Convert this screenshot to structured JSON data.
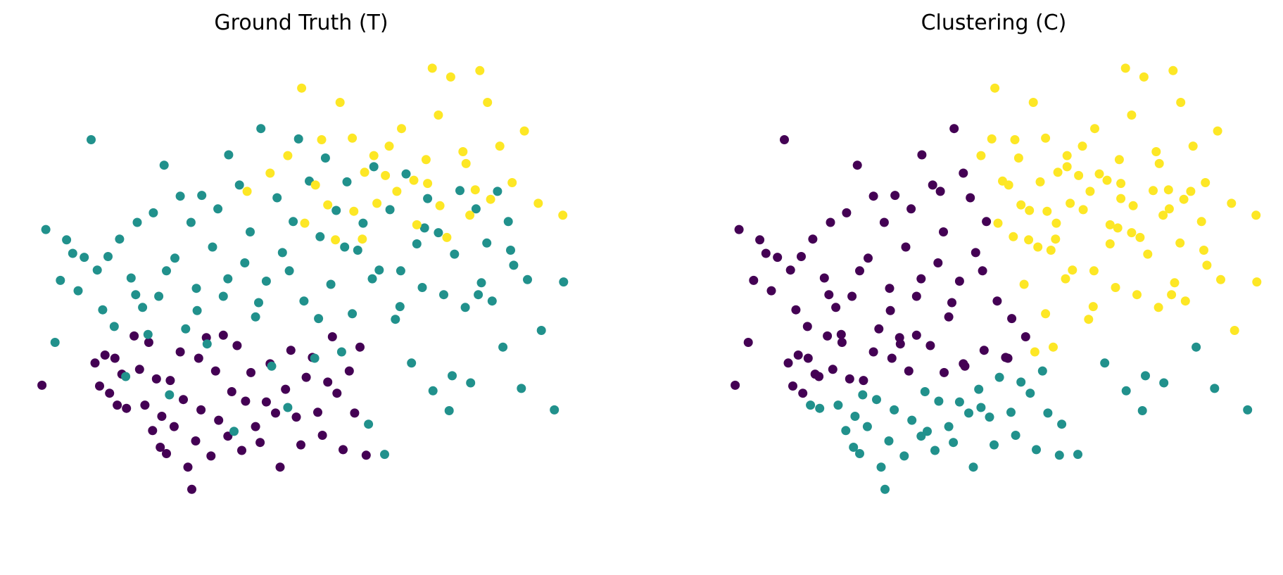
{
  "colors": {
    "purple": "#440154",
    "teal": "#21918c",
    "yellow": "#fde725"
  },
  "chart_data": [
    {
      "type": "scatter",
      "title": "Ground Truth (T)",
      "axes": "off",
      "grid": false,
      "xlim": [
        -3.4,
        3.7
      ],
      "ylim": [
        -2.8,
        3.4
      ],
      "color_by_label": {
        "0": "purple",
        "1": "teal",
        "2": "yellow"
      },
      "points": [
        [
          -3.22,
          -0.74,
          0
        ],
        [
          -2.53,
          -0.46,
          0
        ],
        [
          -2.47,
          -0.75,
          0
        ],
        [
          -2.4,
          -0.36,
          0
        ],
        [
          -2.34,
          -0.84,
          0
        ],
        [
          -2.27,
          -0.4,
          0
        ],
        [
          -2.24,
          -0.99,
          0
        ],
        [
          -2.18,
          -0.6,
          0
        ],
        [
          -2.12,
          -1.03,
          0
        ],
        [
          -2.02,
          -0.12,
          0
        ],
        [
          -1.95,
          -0.54,
          0
        ],
        [
          -1.88,
          -0.99,
          0
        ],
        [
          -1.83,
          -0.2,
          0
        ],
        [
          -1.78,
          -1.31,
          0
        ],
        [
          -1.73,
          -0.66,
          0
        ],
        [
          -1.68,
          -1.52,
          0
        ],
        [
          -1.66,
          -1.13,
          0
        ],
        [
          -1.6,
          -1.6,
          0
        ],
        [
          -1.55,
          -0.68,
          0
        ],
        [
          -1.5,
          -1.26,
          0
        ],
        [
          -1.42,
          -0.32,
          0
        ],
        [
          -1.38,
          -0.92,
          0
        ],
        [
          -1.32,
          -1.77,
          0
        ],
        [
          -1.27,
          -2.05,
          0
        ],
        [
          -1.22,
          -1.44,
          0
        ],
        [
          -1.18,
          -0.4,
          0
        ],
        [
          -1.15,
          -1.05,
          0
        ],
        [
          -1.08,
          -0.14,
          0
        ],
        [
          -1.02,
          -1.63,
          0
        ],
        [
          -0.96,
          -0.56,
          0
        ],
        [
          -0.92,
          -1.18,
          0
        ],
        [
          -0.86,
          -0.11,
          0
        ],
        [
          -0.8,
          -1.38,
          0
        ],
        [
          -0.75,
          -0.82,
          0
        ],
        [
          -0.68,
          -0.24,
          0
        ],
        [
          -0.62,
          -1.56,
          0
        ],
        [
          -0.57,
          -0.94,
          0
        ],
        [
          -0.5,
          -0.58,
          0
        ],
        [
          -0.44,
          -1.26,
          0
        ],
        [
          -0.38,
          -1.46,
          0
        ],
        [
          -0.3,
          -0.95,
          0
        ],
        [
          -0.25,
          -0.47,
          0
        ],
        [
          -0.18,
          -1.09,
          0
        ],
        [
          -0.12,
          -1.77,
          0
        ],
        [
          -0.05,
          -0.79,
          0
        ],
        [
          0.02,
          -0.3,
          0
        ],
        [
          0.09,
          -1.14,
          0
        ],
        [
          0.15,
          -1.49,
          0
        ],
        [
          0.22,
          -0.64,
          0
        ],
        [
          0.3,
          -0.39,
          0
        ],
        [
          0.37,
          -1.08,
          0
        ],
        [
          0.43,
          -1.37,
          0
        ],
        [
          0.5,
          -0.7,
          0
        ],
        [
          0.56,
          -0.13,
          0
        ],
        [
          0.62,
          -0.84,
          0
        ],
        [
          0.7,
          -1.55,
          0
        ],
        [
          0.78,
          -0.56,
          0
        ],
        [
          0.85,
          -1.09,
          0
        ],
        [
          0.92,
          -0.26,
          0
        ],
        [
          1.0,
          -1.62,
          0
        ],
        [
          -3.17,
          1.22,
          1
        ],
        [
          -3.05,
          -0.2,
          1
        ],
        [
          -2.98,
          0.58,
          1
        ],
        [
          -2.9,
          1.09,
          1
        ],
        [
          -2.82,
          0.92,
          1
        ],
        [
          -2.75,
          0.45,
          1
        ],
        [
          -2.67,
          0.87,
          1
        ],
        [
          -2.58,
          2.35,
          1
        ],
        [
          -2.5,
          0.71,
          1
        ],
        [
          -2.43,
          0.21,
          1
        ],
        [
          -2.36,
          0.88,
          1
        ],
        [
          -2.28,
          0.0,
          1
        ],
        [
          -2.21,
          1.1,
          1
        ],
        [
          -2.13,
          -0.63,
          1
        ],
        [
          -2.06,
          0.61,
          1
        ],
        [
          -1.98,
          1.31,
          1
        ],
        [
          -1.91,
          0.24,
          1
        ],
        [
          -1.84,
          -0.1,
          1
        ],
        [
          -1.77,
          1.43,
          1
        ],
        [
          -1.7,
          0.38,
          1
        ],
        [
          -1.63,
          2.03,
          1
        ],
        [
          -1.56,
          -0.86,
          1
        ],
        [
          -1.49,
          0.86,
          1
        ],
        [
          -1.42,
          1.64,
          1
        ],
        [
          -1.35,
          -0.03,
          1
        ],
        [
          -1.28,
          1.31,
          1
        ],
        [
          -1.21,
          0.48,
          1
        ],
        [
          -1.14,
          1.65,
          1
        ],
        [
          -1.07,
          -0.22,
          1
        ],
        [
          -1.0,
          1.0,
          1
        ],
        [
          -0.93,
          1.48,
          1
        ],
        [
          -0.86,
          0.38,
          1
        ],
        [
          -0.79,
          2.16,
          1
        ],
        [
          -0.72,
          -1.32,
          1
        ],
        [
          -0.65,
          1.78,
          1
        ],
        [
          -0.58,
          0.8,
          1
        ],
        [
          -0.51,
          1.19,
          1
        ],
        [
          -0.44,
          0.12,
          1
        ],
        [
          -0.37,
          2.49,
          1
        ],
        [
          -0.3,
          0.57,
          1
        ],
        [
          -0.23,
          -0.5,
          1
        ],
        [
          -0.16,
          1.62,
          1
        ],
        [
          -0.09,
          0.93,
          1
        ],
        [
          -0.02,
          -1.02,
          1
        ],
        [
          0.05,
          1.32,
          1
        ],
        [
          0.12,
          2.36,
          1
        ],
        [
          0.19,
          0.32,
          1
        ],
        [
          0.26,
          1.83,
          1
        ],
        [
          0.33,
          -0.4,
          1
        ],
        [
          0.4,
          1.13,
          1
        ],
        [
          0.47,
          2.12,
          1
        ],
        [
          0.54,
          0.53,
          1
        ],
        [
          0.61,
          1.46,
          1
        ],
        [
          0.68,
          -0.32,
          1
        ],
        [
          0.75,
          1.82,
          1
        ],
        [
          0.82,
          0.16,
          1
        ],
        [
          0.89,
          0.96,
          1
        ],
        [
          0.96,
          1.3,
          1
        ],
        [
          1.03,
          -1.23,
          1
        ],
        [
          1.1,
          2.01,
          1
        ],
        [
          1.17,
          0.71,
          1
        ],
        [
          1.24,
          -1.61,
          1
        ],
        [
          1.31,
          1.47,
          1
        ],
        [
          1.38,
          0.09,
          1
        ],
        [
          1.45,
          0.7,
          1
        ],
        [
          1.52,
          1.92,
          1
        ],
        [
          1.59,
          -0.46,
          1
        ],
        [
          1.66,
          1.04,
          1
        ],
        [
          1.73,
          0.49,
          1
        ],
        [
          1.8,
          1.61,
          1
        ],
        [
          1.87,
          -0.81,
          1
        ],
        [
          1.94,
          1.18,
          1
        ],
        [
          2.01,
          0.4,
          1
        ],
        [
          2.08,
          -1.06,
          1
        ],
        [
          2.15,
          0.91,
          1
        ],
        [
          2.22,
          1.71,
          1
        ],
        [
          2.29,
          0.24,
          1
        ],
        [
          2.36,
          -0.71,
          1
        ],
        [
          2.43,
          1.48,
          1
        ],
        [
          2.5,
          0.55,
          1
        ],
        [
          2.57,
          1.05,
          1
        ],
        [
          2.64,
          0.32,
          1
        ],
        [
          2.71,
          1.7,
          1
        ],
        [
          2.78,
          -0.26,
          1
        ],
        [
          2.85,
          1.32,
          1
        ],
        [
          2.92,
          0.77,
          1
        ],
        [
          3.1,
          0.59,
          1
        ],
        [
          3.28,
          -0.05,
          1
        ],
        [
          3.45,
          -1.05,
          1
        ],
        [
          3.57,
          0.56,
          1
        ],
        [
          3.02,
          -0.78,
          1
        ],
        [
          2.88,
          0.96,
          1
        ],
        [
          2.46,
          0.4,
          1
        ],
        [
          2.12,
          -0.62,
          1
        ],
        [
          1.76,
          1.24,
          1
        ],
        [
          1.44,
          0.25,
          1
        ],
        [
          1.08,
          0.6,
          1
        ],
        [
          0.72,
          1.0,
          1
        ],
        [
          0.38,
          0.1,
          1
        ],
        [
          0.0,
          0.7,
          1
        ],
        [
          -0.4,
          0.3,
          1
        ],
        [
          -0.8,
          0.6,
          1
        ],
        [
          -1.2,
          0.2,
          1
        ],
        [
          -1.6,
          0.7,
          1
        ],
        [
          -2.0,
          0.4,
          1
        ],
        [
          -0.25,
          1.93,
          2
        ],
        [
          -0.02,
          2.15,
          2
        ],
        [
          0.16,
          3.0,
          2
        ],
        [
          0.34,
          1.78,
          2
        ],
        [
          0.5,
          1.53,
          2
        ],
        [
          0.66,
          2.82,
          2
        ],
        [
          0.82,
          2.37,
          2
        ],
        [
          0.98,
          1.94,
          2
        ],
        [
          1.14,
          1.55,
          2
        ],
        [
          1.3,
          2.27,
          2
        ],
        [
          1.46,
          2.49,
          2
        ],
        [
          1.62,
          1.84,
          2
        ],
        [
          1.78,
          2.1,
          2
        ],
        [
          1.94,
          2.66,
          2
        ],
        [
          2.1,
          3.14,
          2
        ],
        [
          2.26,
          2.2,
          2
        ],
        [
          2.42,
          1.72,
          2
        ],
        [
          2.58,
          2.82,
          2
        ],
        [
          2.74,
          2.27,
          2
        ],
        [
          2.9,
          1.81,
          2
        ],
        [
          3.06,
          2.46,
          2
        ],
        [
          3.24,
          1.55,
          2
        ],
        [
          3.56,
          1.4,
          2
        ],
        [
          1.86,
          3.25,
          2
        ],
        [
          2.48,
          3.22,
          2
        ],
        [
          1.25,
          1.9,
          2
        ],
        [
          0.84,
          1.45,
          2
        ],
        [
          1.66,
          1.28,
          2
        ],
        [
          2.05,
          1.12,
          2
        ],
        [
          0.6,
          1.09,
          2
        ],
        [
          1.1,
          2.15,
          2
        ],
        [
          1.4,
          1.7,
          2
        ],
        [
          2.35,
          1.4,
          2
        ],
        [
          1.96,
          1.52,
          2
        ],
        [
          0.42,
          2.35,
          2
        ],
        [
          -0.55,
          1.7,
          2
        ],
        [
          0.2,
          1.3,
          2
        ],
        [
          2.62,
          1.6,
          2
        ],
        [
          1.8,
          1.8,
          2
        ],
        [
          0.95,
          1.1,
          2
        ],
        [
          2.3,
          2.05,
          2
        ]
      ]
    },
    {
      "type": "scatter",
      "title": "Clustering (C)",
      "axes": "off",
      "grid": false,
      "xlim": [
        -3.4,
        3.7
      ],
      "ylim": [
        -2.8,
        3.4
      ],
      "color_by_label": {
        "0": "purple",
        "1": "teal",
        "2": "yellow"
      },
      "points": []
    }
  ]
}
